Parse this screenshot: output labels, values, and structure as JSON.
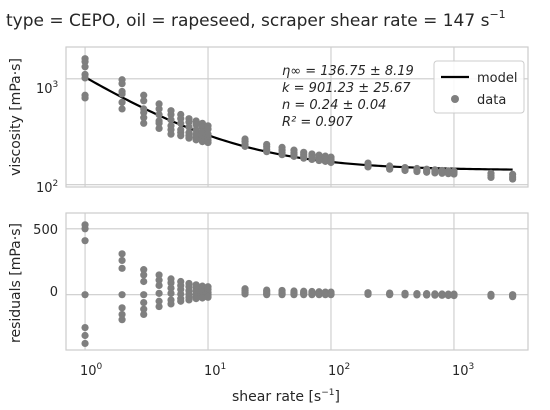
{
  "title_text": "type = CEPO, oil = rapeseed, scraper shear rate = 147 s",
  "title_sup": "−1",
  "chart_data": [
    {
      "type": "scatter",
      "panel": "top",
      "ylabel": "viscosity [mPa·s]",
      "xscale": "log",
      "yscale": "log",
      "xlim": [
        0.7,
        4000
      ],
      "ylim": [
        95,
        2000
      ],
      "grid": true,
      "legend": {
        "placement": "top-right",
        "entries": [
          "model",
          "data"
        ]
      },
      "annotations": [
        "η∞ = 136.75 ± 8.19",
        "k = 901.23 ± 25.67",
        "n = 0.24 ± 0.04",
        "R² = 0.907"
      ],
      "model": {
        "eta_inf": 136.75,
        "k": 901.23,
        "n": 0.24
      },
      "series": [
        {
          "name": "data",
          "points": [
            [
              1,
              1550
            ],
            [
              1,
              1450
            ],
            [
              1,
              1300
            ],
            [
              1,
              1100
            ],
            [
              1,
              1020
            ],
            [
              1,
              700
            ],
            [
              1,
              660
            ],
            [
              2,
              980
            ],
            [
              2,
              900
            ],
            [
              2,
              760
            ],
            [
              2,
              720
            ],
            [
              2,
              600
            ],
            [
              2,
              520
            ],
            [
              3,
              700
            ],
            [
              3,
              620
            ],
            [
              3,
              520
            ],
            [
              3,
              480
            ],
            [
              3,
              430
            ],
            [
              3,
              380
            ],
            [
              4,
              580
            ],
            [
              4,
              520
            ],
            [
              4,
              460
            ],
            [
              4,
              400
            ],
            [
              4,
              380
            ],
            [
              4,
              340
            ],
            [
              5,
              500
            ],
            [
              5,
              460
            ],
            [
              5,
              410
            ],
            [
              5,
              360
            ],
            [
              5,
              330
            ],
            [
              5,
              300
            ],
            [
              6,
              460
            ],
            [
              6,
              420
            ],
            [
              6,
              380
            ],
            [
              6,
              330
            ],
            [
              6,
              310
            ],
            [
              6,
              290
            ],
            [
              7,
              420
            ],
            [
              7,
              390
            ],
            [
              7,
              350
            ],
            [
              7,
              310
            ],
            [
              7,
              290
            ],
            [
              7,
              275
            ],
            [
              8,
              400
            ],
            [
              8,
              370
            ],
            [
              8,
              330
            ],
            [
              8,
              300
            ],
            [
              8,
              280
            ],
            [
              8,
              265
            ],
            [
              9,
              380
            ],
            [
              9,
              350
            ],
            [
              9,
              315
            ],
            [
              9,
              290
            ],
            [
              9,
              270
            ],
            [
              9,
              255
            ],
            [
              10,
              360
            ],
            [
              10,
              335
            ],
            [
              10,
              300
            ],
            [
              10,
              280
            ],
            [
              10,
              262
            ],
            [
              10,
              250
            ],
            [
              20,
              270
            ],
            [
              20,
              255
            ],
            [
              20,
              240
            ],
            [
              20,
              230
            ],
            [
              30,
              240
            ],
            [
              30,
              228
            ],
            [
              30,
              215
            ],
            [
              30,
              205
            ],
            [
              40,
              225
            ],
            [
              40,
              212
            ],
            [
              40,
              200
            ],
            [
              40,
              192
            ],
            [
              50,
              212
            ],
            [
              50,
              200
            ],
            [
              50,
              192
            ],
            [
              50,
              185
            ],
            [
              60,
              202
            ],
            [
              60,
              192
            ],
            [
              60,
              185
            ],
            [
              60,
              178
            ],
            [
              70,
              195
            ],
            [
              70,
              186
            ],
            [
              70,
              179
            ],
            [
              70,
              173
            ],
            [
              80,
              190
            ],
            [
              80,
              181
            ],
            [
              80,
              175
            ],
            [
              80,
              169
            ],
            [
              90,
              186
            ],
            [
              90,
              178
            ],
            [
              90,
              171
            ],
            [
              90,
              166
            ],
            [
              100,
              182
            ],
            [
              100,
              174
            ],
            [
              100,
              168
            ],
            [
              100,
              162
            ],
            [
              200,
              160
            ],
            [
              200,
              152
            ],
            [
              200,
              147
            ],
            [
              300,
              150
            ],
            [
              300,
              144
            ],
            [
              300,
              140
            ],
            [
              400,
              145
            ],
            [
              400,
              140
            ],
            [
              400,
              136
            ],
            [
              500,
              142
            ],
            [
              500,
              137
            ],
            [
              500,
              133
            ],
            [
              600,
              140
            ],
            [
              600,
              135
            ],
            [
              600,
              131
            ],
            [
              700,
              138
            ],
            [
              700,
              133
            ],
            [
              700,
              129
            ],
            [
              800,
              136
            ],
            [
              800,
              132
            ],
            [
              800,
              128
            ],
            [
              900,
              135
            ],
            [
              900,
              131
            ],
            [
              900,
              127
            ],
            [
              1000,
              134
            ],
            [
              1000,
              130
            ],
            [
              1000,
              126
            ],
            [
              2000,
              128
            ],
            [
              2000,
              122
            ],
            [
              2000,
              117
            ],
            [
              3000,
              125
            ],
            [
              3000,
              118
            ],
            [
              3000,
              113
            ]
          ]
        }
      ]
    },
    {
      "type": "scatter",
      "panel": "bottom",
      "xlabel": "shear rate [s−1]",
      "ylabel": "residuals [mPa·s]",
      "xscale": "log",
      "xlim": [
        0.7,
        4000
      ],
      "ylim": [
        -420,
        620
      ],
      "yticks": [
        0,
        500
      ],
      "grid": true,
      "series": [
        {
          "name": "residuals",
          "points": [
            [
              1,
              530
            ],
            [
              1,
              500
            ],
            [
              1,
              410
            ],
            [
              1,
              0
            ],
            [
              1,
              -250
            ],
            [
              1,
              -310
            ],
            [
              1,
              -370
            ],
            [
              2,
              310
            ],
            [
              2,
              260
            ],
            [
              2,
              200
            ],
            [
              2,
              0
            ],
            [
              2,
              -100
            ],
            [
              2,
              -150
            ],
            [
              2,
              -190
            ],
            [
              3,
              190
            ],
            [
              3,
              150
            ],
            [
              3,
              100
            ],
            [
              3,
              0
            ],
            [
              3,
              -60
            ],
            [
              3,
              -110
            ],
            [
              3,
              -150
            ],
            [
              4,
              150
            ],
            [
              4,
              110
            ],
            [
              4,
              70
            ],
            [
              4,
              10
            ],
            [
              4,
              -50
            ],
            [
              4,
              -90
            ],
            [
              5,
              120
            ],
            [
              5,
              90
            ],
            [
              5,
              50
            ],
            [
              5,
              10
            ],
            [
              5,
              -40
            ],
            [
              5,
              -70
            ],
            [
              6,
              100
            ],
            [
              6,
              70
            ],
            [
              6,
              40
            ],
            [
              6,
              5
            ],
            [
              6,
              -30
            ],
            [
              6,
              -50
            ],
            [
              7,
              85
            ],
            [
              7,
              60
            ],
            [
              7,
              30
            ],
            [
              7,
              5
            ],
            [
              7,
              -20
            ],
            [
              7,
              -40
            ],
            [
              8,
              75
            ],
            [
              8,
              50
            ],
            [
              8,
              25
            ],
            [
              8,
              0
            ],
            [
              8,
              -15
            ],
            [
              8,
              -30
            ],
            [
              9,
              65
            ],
            [
              9,
              45
            ],
            [
              9,
              20
            ],
            [
              9,
              0
            ],
            [
              9,
              -10
            ],
            [
              9,
              -25
            ],
            [
              10,
              60
            ],
            [
              10,
              40
            ],
            [
              10,
              15
            ],
            [
              10,
              0
            ],
            [
              10,
              -10
            ],
            [
              10,
              -20
            ],
            [
              20,
              45
            ],
            [
              20,
              30
            ],
            [
              20,
              15
            ],
            [
              20,
              5
            ],
            [
              30,
              35
            ],
            [
              30,
              22
            ],
            [
              30,
              10
            ],
            [
              30,
              0
            ],
            [
              40,
              32
            ],
            [
              40,
              20
            ],
            [
              40,
              8
            ],
            [
              40,
              0
            ],
            [
              50,
              28
            ],
            [
              50,
              18
            ],
            [
              50,
              8
            ],
            [
              50,
              0
            ],
            [
              60,
              26
            ],
            [
              60,
              16
            ],
            [
              60,
              8
            ],
            [
              60,
              0
            ],
            [
              70,
              24
            ],
            [
              70,
              15
            ],
            [
              70,
              6
            ],
            [
              70,
              0
            ],
            [
              80,
              22
            ],
            [
              80,
              14
            ],
            [
              80,
              6
            ],
            [
              80,
              0
            ],
            [
              90,
              20
            ],
            [
              90,
              12
            ],
            [
              90,
              5
            ],
            [
              90,
              0
            ],
            [
              100,
              20
            ],
            [
              100,
              12
            ],
            [
              100,
              5
            ],
            [
              100,
              0
            ],
            [
              200,
              15
            ],
            [
              200,
              8
            ],
            [
              200,
              2
            ],
            [
              300,
              12
            ],
            [
              300,
              6
            ],
            [
              300,
              0
            ],
            [
              400,
              10
            ],
            [
              400,
              4
            ],
            [
              400,
              -2
            ],
            [
              500,
              8
            ],
            [
              500,
              3
            ],
            [
              500,
              -2
            ],
            [
              600,
              8
            ],
            [
              600,
              2
            ],
            [
              600,
              -3
            ],
            [
              700,
              6
            ],
            [
              700,
              1
            ],
            [
              700,
              -4
            ],
            [
              800,
              5
            ],
            [
              800,
              0
            ],
            [
              800,
              -5
            ],
            [
              900,
              4
            ],
            [
              900,
              -1
            ],
            [
              900,
              -6
            ],
            [
              1000,
              4
            ],
            [
              1000,
              -2
            ],
            [
              1000,
              -7
            ],
            [
              2000,
              2
            ],
            [
              2000,
              -5
            ],
            [
              2000,
              -12
            ],
            [
              3000,
              0
            ],
            [
              3000,
              -8
            ],
            [
              3000,
              -15
            ]
          ]
        }
      ]
    }
  ],
  "labels": {
    "legend_model": "model",
    "legend_data": "data",
    "top_ylabel": "viscosity [mPa·s]",
    "bottom_ylabel": "residuals [mPa·s]",
    "xlabel_main": "shear rate [s",
    "xlabel_sup": "−1",
    "xlabel_close": "]",
    "ann_1": "η∞ = 136.75 ± 8.19",
    "ann_2": "k = 901.23 ± 25.67",
    "ann_3": "n = 0.24 ± 0.04",
    "ann_4": "R² = 0.907",
    "top_ytick_1000_base": "10",
    "top_ytick_1000_exp": "3",
    "top_ytick_100_base": "10",
    "top_ytick_100_exp": "2",
    "bottom_ytick_500": "500",
    "bottom_ytick_0": "0",
    "xtick_1_base": "10",
    "xtick_1_exp": "0",
    "xtick_10_base": "10",
    "xtick_10_exp": "1",
    "xtick_100_base": "10",
    "xtick_100_exp": "2",
    "xtick_1000_base": "10",
    "xtick_1000_exp": "3"
  },
  "colors": {
    "data": "#7f7f7f",
    "model": "#000000",
    "grid": "#cccccc",
    "frame": "#cccccc",
    "text": "#262626"
  }
}
